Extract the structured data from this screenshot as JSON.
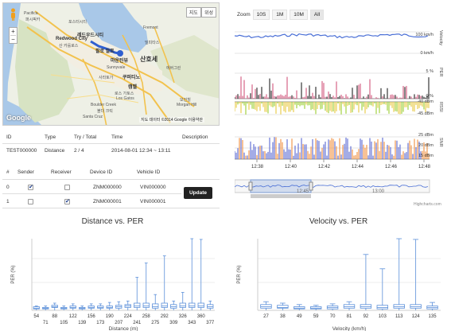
{
  "map": {
    "type_buttons": [
      "지도",
      "위성"
    ],
    "zoom_in": "+",
    "zoom_out": "−",
    "logo": "Google",
    "copyright": "지도 데이터 ©2014 Google   이용약관",
    "cities": [
      "Pacifica",
      "퍼시픽카",
      "포스터시티",
      "Redwood City",
      "레드우드시티",
      "산 카를로스",
      "팔로 알토",
      "마운틴뷰",
      "쿠퍼티노",
      "산호세",
      "캠벨",
      "로스 가토스",
      "Los Gatos",
      "Boulder Creek",
      "볼더 크릭",
      "모건힐",
      "Morgan Hill",
      "밀피타스",
      "에버그린",
      "Fremont",
      "Sunnyvale",
      "사라토가",
      "Santa Cruz"
    ]
  },
  "info": {
    "headers": [
      "ID",
      "Type",
      "Try / Total",
      "Time",
      "Description"
    ],
    "row": {
      "id": "TEST000000",
      "type": "Distance",
      "try_total": "2 / 4",
      "time": "2014-08-01 12:34 ~ 13:11",
      "description": ""
    }
  },
  "devices": {
    "headers": [
      "#",
      "Sender",
      "Receiver",
      "Device ID",
      "Vehicle ID"
    ],
    "rows": [
      {
        "num": "0",
        "sender": true,
        "receiver": false,
        "device_id": "ZNM000000",
        "vehicle_id": "VIN000000"
      },
      {
        "num": "1",
        "sender": false,
        "receiver": true,
        "device_id": "ZNM000001",
        "vehicle_id": "VIN000001"
      }
    ],
    "update_label": "Update"
  },
  "timeseries": {
    "zoom_label": "Zoom",
    "zoom_buttons": [
      "10S",
      "1M",
      "10M",
      "All"
    ],
    "panels": [
      {
        "name": "Velocity",
        "yticks": [
          "100 km/h",
          "0 km/h"
        ]
      },
      {
        "name": "PER",
        "yticks": [
          "5 %",
          "0 %"
        ]
      },
      {
        "name": "RSSI",
        "yticks": [
          "-40 dBm",
          "-45 dBm"
        ]
      },
      {
        "name": "SNR",
        "yticks": [
          "25 dBm",
          "20 dBm",
          "15 dBm"
        ]
      }
    ],
    "xticks": [
      "12:38",
      "12:40",
      "12:42",
      "12:44",
      "12:46",
      "12:48"
    ],
    "navigator_ticks": [
      "12:45",
      "13:00"
    ],
    "credit": "Highcharts.com",
    "colors": {
      "velocity": "#4a6fd6",
      "per": "#d0557c",
      "per_dark": "#222222",
      "rssi_green": "#9acd32",
      "rssi_yellow": "#e8c840",
      "snr_orange": "#f09040",
      "snr_blue": "#5a68d0"
    }
  },
  "chart_data": [
    {
      "type": "box",
      "title": "Distance vs. PER",
      "xlabel": "Distance (m)",
      "ylabel": "PER (%)",
      "ylim": [
        0,
        10
      ],
      "categories": [
        "54",
        "71",
        "88",
        "105",
        "122",
        "139",
        "156",
        "173",
        "190",
        "207",
        "224",
        "241",
        "258",
        "275",
        "292",
        "309",
        "326",
        "343",
        "360",
        "377"
      ],
      "box": [
        {
          "low": 0,
          "q1": 0.2,
          "median": 0.3,
          "q3": 0.5,
          "high": 0.6
        },
        {
          "low": 0,
          "q1": 0.2,
          "median": 0.3,
          "q3": 0.4,
          "high": 0.6
        },
        {
          "low": 0,
          "q1": 0.4,
          "median": 0.5,
          "q3": 0.7,
          "high": 1.0
        },
        {
          "low": 0,
          "q1": 0.2,
          "median": 0.3,
          "q3": 0.4,
          "high": 0.6
        },
        {
          "low": 0,
          "q1": 0.3,
          "median": 0.4,
          "q3": 0.6,
          "high": 0.9
        },
        {
          "low": 0,
          "q1": 0.2,
          "median": 0.3,
          "q3": 0.4,
          "high": 0.6
        },
        {
          "low": 0,
          "q1": 0.3,
          "median": 0.4,
          "q3": 0.6,
          "high": 0.9
        },
        {
          "low": 0,
          "q1": 0.3,
          "median": 0.4,
          "q3": 0.6,
          "high": 0.9
        },
        {
          "low": 0,
          "q1": 0.3,
          "median": 0.4,
          "q3": 0.6,
          "high": 1.1
        },
        {
          "low": 0,
          "q1": 0.3,
          "median": 0.5,
          "q3": 0.7,
          "high": 1.2
        },
        {
          "low": 0,
          "q1": 0.4,
          "median": 0.6,
          "q3": 0.8,
          "high": 1.3
        },
        {
          "low": 0,
          "q1": 0.4,
          "median": 0.6,
          "q3": 1.0,
          "high": 4.6
        },
        {
          "low": 0,
          "q1": 0.4,
          "median": 0.6,
          "q3": 1.0,
          "high": 6.6
        },
        {
          "low": 0,
          "q1": 0.3,
          "median": 0.5,
          "q3": 0.9,
          "high": 2.2
        },
        {
          "low": 0,
          "q1": 0.4,
          "median": 0.6,
          "q3": 1.0,
          "high": 7.6
        },
        {
          "low": 0,
          "q1": 0.3,
          "median": 0.5,
          "q3": 0.8,
          "high": 1.3
        },
        {
          "low": 0,
          "q1": 0.4,
          "median": 0.6,
          "q3": 1.0,
          "high": 2.5
        },
        {
          "low": 0,
          "q1": 0.4,
          "median": 0.6,
          "q3": 1.0,
          "high": 10.0
        },
        {
          "low": 0,
          "q1": 0.4,
          "median": 0.6,
          "q3": 1.0,
          "high": 9.9
        },
        {
          "low": 0,
          "q1": 0.3,
          "median": 0.5,
          "q3": 0.8,
          "high": 1.3
        }
      ]
    },
    {
      "type": "box",
      "title": "Velocity vs. PER",
      "xlabel": "Velocity (km/h)",
      "ylabel": "PER (%)",
      "ylim": [
        0,
        10
      ],
      "categories": [
        "27",
        "38",
        "49",
        "59",
        "70",
        "81",
        "92",
        "103",
        "113",
        "124",
        "135"
      ],
      "box": [
        {
          "low": 0,
          "q1": 0.3,
          "median": 0.5,
          "q3": 0.8,
          "high": 1.2
        },
        {
          "low": 0,
          "q1": 0.3,
          "median": 0.4,
          "q3": 0.7,
          "high": 1.0
        },
        {
          "low": 0,
          "q1": 0.2,
          "median": 0.3,
          "q3": 0.5,
          "high": 0.8
        },
        {
          "low": 0,
          "q1": 0.2,
          "median": 0.3,
          "q3": 0.5,
          "high": 0.7
        },
        {
          "low": 0,
          "q1": 0.2,
          "median": 0.4,
          "q3": 0.6,
          "high": 0.9
        },
        {
          "low": 0,
          "q1": 0.3,
          "median": 0.5,
          "q3": 0.8,
          "high": 1.2
        },
        {
          "low": 0,
          "q1": 0.3,
          "median": 0.5,
          "q3": 0.8,
          "high": 7.8
        },
        {
          "low": 0,
          "q1": 0.2,
          "median": 0.4,
          "q3": 0.7,
          "high": 5.8
        },
        {
          "low": 0,
          "q1": 0.3,
          "median": 0.5,
          "q3": 0.8,
          "high": 10.0
        },
        {
          "low": 0,
          "q1": 0.3,
          "median": 0.5,
          "q3": 0.8,
          "high": 9.9
        },
        {
          "low": 0,
          "q1": 0.2,
          "median": 0.4,
          "q3": 0.6,
          "high": 1.1
        }
      ]
    }
  ]
}
